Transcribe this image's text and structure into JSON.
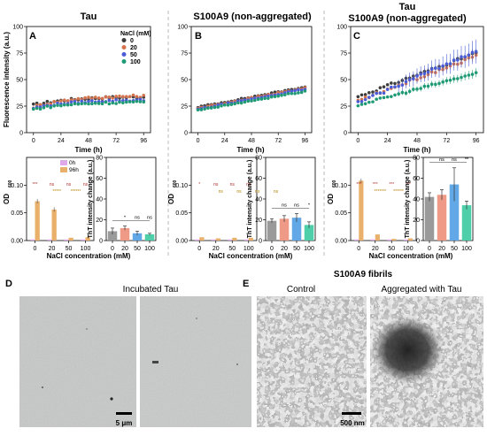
{
  "panels": {
    "A": {
      "letter": "A",
      "title": "Tau"
    },
    "B": {
      "letter": "B",
      "title": "S100A9 (non-aggregated)"
    },
    "C": {
      "letter": "C",
      "title_line1": "Tau",
      "title_line2": "S100A9 (non-aggregated)"
    },
    "D": {
      "letter": "D",
      "title": "Incubated Tau",
      "scale": "5 μm"
    },
    "E": {
      "letter": "E",
      "title": "S100A9 fibrils",
      "sub_left": "Control",
      "sub_right": "Aggregated with Tau",
      "scale": "500 nm"
    }
  },
  "legend_kinetics": {
    "title": "NaCl (mM)",
    "items": [
      {
        "label": "0",
        "color": "#3d3d3d"
      },
      {
        "label": "20",
        "color": "#d4724d"
      },
      {
        "label": "50",
        "color": "#4a5dd6"
      },
      {
        "label": "100",
        "color": "#1f9a74"
      }
    ]
  },
  "legend_od": {
    "items": [
      {
        "label": "0h",
        "color": "#dda9e9"
      },
      {
        "label": "96h",
        "color": "#e8b06a"
      }
    ]
  },
  "axis_text": {
    "fluor_ylabel": "Fluorescence intensity (a.u.)",
    "time_xlabel": "Time (h)",
    "od_ylabel": "OD",
    "od_sub": "600",
    "tht_ylabel": "ThT intensity change (a.u.)",
    "nacl_xlabel": "NaCl concentration (mM)"
  },
  "chart_data": [
    {
      "panel": "A",
      "type": "scatter",
      "xlim": [
        -6,
        102
      ],
      "ylim": [
        0,
        100
      ],
      "xticks": [
        0,
        24,
        48,
        72,
        96
      ],
      "yticks": [
        0,
        25,
        50,
        75,
        100
      ],
      "series": [
        {
          "name": "0",
          "color": "#3d3d3d",
          "start": 26,
          "end": 34,
          "shape": "sat",
          "noise": 1.2,
          "err": 1
        },
        {
          "name": "20",
          "color": "#d4724d",
          "start": 24,
          "end": 35,
          "shape": "sat",
          "noise": 1.2,
          "err": 1
        },
        {
          "name": "50",
          "color": "#4a5dd6",
          "start": 23,
          "end": 31,
          "shape": "sat",
          "noise": 1.0,
          "err": 1
        },
        {
          "name": "100",
          "color": "#1f9a74",
          "start": 22,
          "end": 29,
          "shape": "sat",
          "noise": 1.0,
          "err": 1
        }
      ]
    },
    {
      "panel": "B",
      "type": "scatter",
      "xlim": [
        -6,
        102
      ],
      "ylim": [
        0,
        100
      ],
      "xticks": [
        0,
        24,
        48,
        72,
        96
      ],
      "yticks": [
        0,
        25,
        50,
        75,
        100
      ],
      "series": [
        {
          "name": "0",
          "color": "#3d3d3d",
          "start": 24,
          "end": 43,
          "shape": "lin",
          "noise": 0.6,
          "err": 1
        },
        {
          "name": "20",
          "color": "#d4724d",
          "start": 23,
          "end": 42,
          "shape": "lin",
          "noise": 0.6,
          "err": 1
        },
        {
          "name": "50",
          "color": "#4a5dd6",
          "start": 22,
          "end": 41,
          "shape": "lin",
          "noise": 0.6,
          "err": 1
        },
        {
          "name": "100",
          "color": "#1f9a74",
          "start": 21,
          "end": 39,
          "shape": "lin",
          "noise": 0.6,
          "err": 1
        }
      ]
    },
    {
      "panel": "C",
      "type": "scatter",
      "xlim": [
        -6,
        102
      ],
      "ylim": [
        0,
        100
      ],
      "xticks": [
        0,
        24,
        48,
        72,
        96
      ],
      "yticks": [
        0,
        25,
        50,
        75,
        100
      ],
      "series": [
        {
          "name": "0",
          "color": "#3d3d3d",
          "start": 34,
          "end": 75,
          "shape": "lin",
          "noise": 1.2,
          "err": 3
        },
        {
          "name": "20",
          "color": "#d4724d",
          "start": 30,
          "end": 72,
          "shape": "lin",
          "noise": 1.2,
          "err": 3
        },
        {
          "name": "50",
          "color": "#4a5dd6",
          "start": 28,
          "end": 77,
          "shape": "lin",
          "noise": 1.5,
          "err": 8
        },
        {
          "name": "100",
          "color": "#1f9a74",
          "start": 26,
          "end": 56,
          "shape": "lin",
          "noise": 1.0,
          "err": 3
        }
      ]
    },
    {
      "panel": "A",
      "type": "bar",
      "categories": [
        "0",
        "20",
        "50",
        "100"
      ],
      "ylim": [
        0,
        0.15
      ],
      "yticks": [
        0.0,
        0.05,
        0.1
      ],
      "series": [
        {
          "name": "0h",
          "color": "#dda9e9",
          "values": [
            0.002,
            0.002,
            0.002,
            0.002
          ]
        },
        {
          "name": "96h",
          "color": "#e8b06a",
          "values": [
            0.071,
            0.056,
            0.005,
            0.006
          ]
        }
      ],
      "sig_top": [
        "***",
        "ns",
        "ns",
        "ns"
      ],
      "sig_bottom": [
        "*****",
        "******"
      ]
    },
    {
      "panel": "A",
      "type": "bar",
      "categories": [
        "0",
        "20",
        "50",
        "100"
      ],
      "ylim": [
        0,
        80
      ],
      "yticks": [
        0,
        20,
        40,
        60,
        80
      ],
      "values": [
        9,
        12,
        7,
        6
      ],
      "errors": [
        3,
        2,
        2,
        1
      ],
      "colors": [
        "#9a9a9a",
        "#ef9a86",
        "#62a8e6",
        "#4fcfa9"
      ],
      "sig": [
        "*",
        "ns",
        "ns"
      ]
    },
    {
      "panel": "B",
      "type": "bar",
      "categories": [
        "0",
        "20",
        "50",
        "100"
      ],
      "ylim": [
        0,
        0.15
      ],
      "yticks": [
        0.0,
        0.05,
        0.1
      ],
      "series": [
        {
          "name": "0h",
          "color": "#dda9e9",
          "values": [
            0.002,
            0.002,
            0.002,
            0.002
          ]
        },
        {
          "name": "96h",
          "color": "#e8b06a",
          "values": [
            0.006,
            0.004,
            0.005,
            0.005
          ]
        }
      ],
      "sig_top": [
        "*",
        "ns",
        "ns",
        "ns"
      ],
      "sig_bottom": [
        "ns",
        "ns",
        "ns",
        "ns"
      ]
    },
    {
      "panel": "B",
      "type": "bar",
      "categories": [
        "0",
        "20",
        "50",
        "100"
      ],
      "ylim": [
        0,
        80
      ],
      "yticks": [
        0,
        20,
        40,
        60,
        80
      ],
      "values": [
        19,
        21,
        22,
        15
      ],
      "errors": [
        2,
        3,
        4,
        3
      ],
      "colors": [
        "#9a9a9a",
        "#ef9a86",
        "#62a8e6",
        "#4fcfa9"
      ],
      "sig": [
        "ns",
        "ns",
        "*"
      ]
    },
    {
      "panel": "C",
      "type": "bar",
      "categories": [
        "0",
        "20",
        "50",
        "100"
      ],
      "ylim": [
        0,
        0.15
      ],
      "yticks": [
        0.0,
        0.05,
        0.1
      ],
      "series": [
        {
          "name": "0h",
          "color": "#dda9e9",
          "values": [
            0.002,
            0.002,
            0.002,
            0.002
          ]
        },
        {
          "name": "96h",
          "color": "#e8b06a",
          "values": [
            0.108,
            0.011,
            0.003,
            0.004
          ]
        }
      ],
      "sig_top": [
        "***",
        "***",
        "***",
        "***"
      ],
      "sig_bottom": [
        "*******",
        "******"
      ]
    },
    {
      "panel": "C",
      "type": "bar",
      "categories": [
        "0",
        "20",
        "50",
        "100"
      ],
      "ylim": [
        0,
        80
      ],
      "yticks": [
        0,
        20,
        40,
        60,
        80
      ],
      "values": [
        42,
        44,
        54,
        34
      ],
      "errors": [
        4,
        5,
        16,
        4
      ],
      "colors": [
        "#9a9a9a",
        "#ef9a86",
        "#62a8e6",
        "#4fcfa9"
      ],
      "sig": [
        "ns",
        "ns",
        "**"
      ]
    }
  ]
}
